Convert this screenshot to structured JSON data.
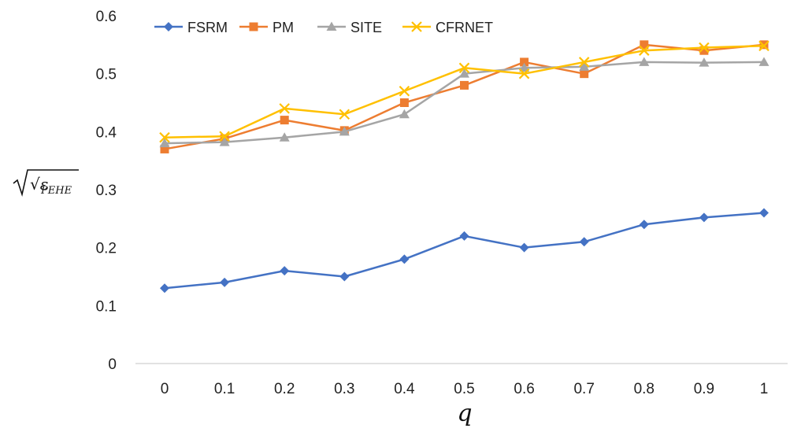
{
  "chart_data": {
    "type": "line",
    "title": "",
    "xlabel": "q",
    "ylabel": "√ε",
    "ylabel_subscript": "PEHE",
    "x": [
      0,
      0.1,
      0.2,
      0.3,
      0.4,
      0.5,
      0.6,
      0.7,
      0.8,
      0.9,
      1
    ],
    "x_tick_labels": [
      "0",
      "0.1",
      "0.2",
      "0.3",
      "0.4",
      "0.5",
      "0.6",
      "0.7",
      "0.8",
      "0.9",
      "1"
    ],
    "ylim": [
      0,
      0.6
    ],
    "y_ticks": [
      0,
      0.1,
      0.2,
      0.3,
      0.4,
      0.5,
      0.6
    ],
    "y_tick_labels": [
      "0",
      "0.1",
      "0.2",
      "0.3",
      "0.4",
      "0.5",
      "0.6"
    ],
    "grid": false,
    "legend_position": "top-left",
    "series": [
      {
        "name": "FSRM",
        "color": "#4472C4",
        "marker": "diamond",
        "values": [
          0.13,
          0.14,
          0.16,
          0.15,
          0.18,
          0.22,
          0.2,
          0.21,
          0.24,
          0.252,
          0.26
        ]
      },
      {
        "name": "PM",
        "color": "#ED7D31",
        "marker": "square",
        "values": [
          0.37,
          0.388,
          0.42,
          0.402,
          0.45,
          0.48,
          0.52,
          0.5,
          0.55,
          0.54,
          0.55
        ]
      },
      {
        "name": "SITE",
        "color": "#A5A5A5",
        "marker": "triangle",
        "values": [
          0.38,
          0.382,
          0.39,
          0.4,
          0.43,
          0.5,
          0.51,
          0.512,
          0.52,
          0.519,
          0.52
        ]
      },
      {
        "name": "CFRNET",
        "color": "#FFC000",
        "marker": "x",
        "values": [
          0.39,
          0.392,
          0.44,
          0.43,
          0.47,
          0.51,
          0.5,
          0.52,
          0.54,
          0.545,
          0.548
        ]
      }
    ]
  }
}
